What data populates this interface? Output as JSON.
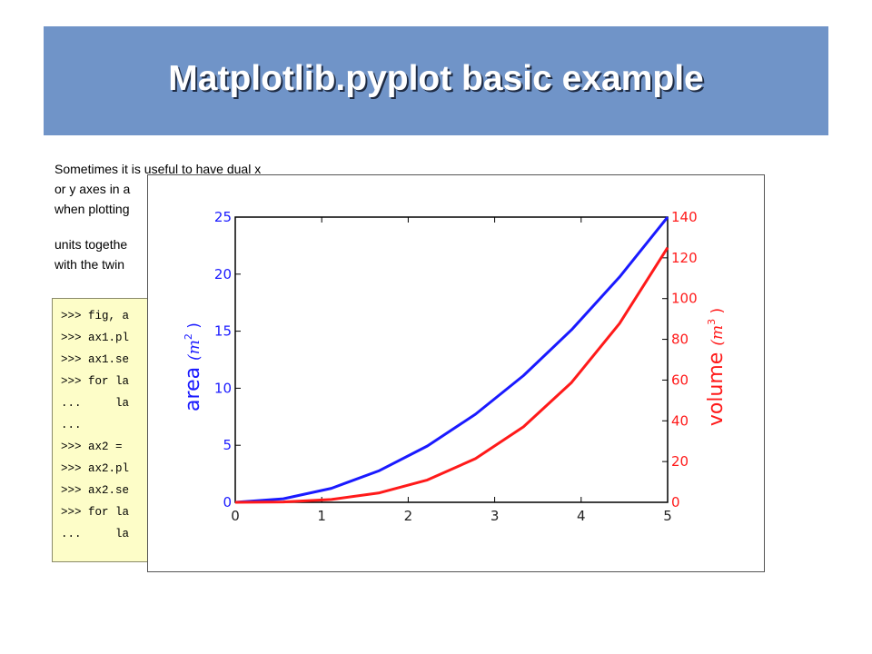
{
  "slide": {
    "title": "Matplotlib.pyplot basic example",
    "paragraphs": [
      [
        "Sometimes it is useful to have dual x",
        "or y axes in a",
        "when plotting"
      ],
      [
        "units togethe",
        "with the twin"
      ]
    ],
    "code_lines": [
      ">>> fig, a",
      ">>> ax1.pl",
      ">>> ax1.se",
      ">>> for la",
      "...     la",
      "...",
      ">>> ax2 =",
      ">>> ax2.pl",
      ">>> ax2.se",
      ">>> for la",
      "...     la"
    ]
  },
  "chart_data": {
    "type": "line",
    "title": "",
    "xlabel": "",
    "xlim": [
      0,
      5
    ],
    "xticks": [
      0,
      1,
      2,
      3,
      4,
      5
    ],
    "left_axis": {
      "label": "area",
      "label_math": "(m",
      "label_sup": "2",
      "label_close": ")",
      "color": "#1a1aff",
      "ylim": [
        0,
        25
      ],
      "ticks": [
        0,
        5,
        10,
        15,
        20,
        25
      ]
    },
    "right_axis": {
      "label": "volume",
      "label_math": "(m",
      "label_sup": "3",
      "label_close": ")",
      "color": "#ff1a1a",
      "ylim": [
        0,
        140
      ],
      "ticks": [
        0,
        20,
        40,
        60,
        80,
        100,
        120,
        140
      ]
    },
    "x": [
      0,
      0.556,
      1.111,
      1.667,
      2.222,
      2.778,
      3.333,
      3.889,
      4.444,
      5.0
    ],
    "series": [
      {
        "axis": "left",
        "color": "#1a1aff",
        "values": [
          0,
          0.31,
          1.23,
          2.78,
          4.94,
          7.72,
          11.11,
          15.12,
          19.75,
          25.0
        ]
      },
      {
        "axis": "right",
        "color": "#ff1a1a",
        "values": [
          0,
          0.17,
          1.37,
          4.63,
          10.97,
          21.43,
          37.04,
          58.81,
          87.79,
          125.0
        ]
      }
    ],
    "grid": false
  }
}
